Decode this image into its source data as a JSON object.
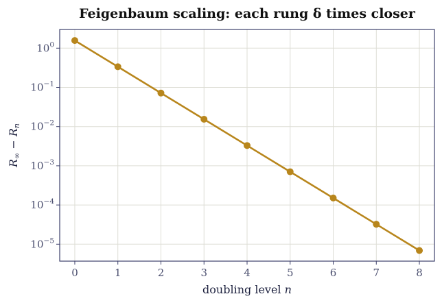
{
  "chart_data": {
    "type": "line",
    "title": "Feigenbaum scaling: each rung δ times closer",
    "xlabel": "doubling level n",
    "xlabel_text": "doubling level ",
    "xlabel_var": "n",
    "ylabel": "R∞ − Rn",
    "ylabel_parts": {
      "r": "R",
      "inf": "∞",
      "minus": " − ",
      "r2": "R",
      "n": "n"
    },
    "y_scale": "log",
    "x_ticks": [
      0,
      1,
      2,
      3,
      4,
      5,
      6,
      7,
      8
    ],
    "x_tick_labels": [
      "0",
      "1",
      "2",
      "3",
      "4",
      "5",
      "6",
      "7",
      "8"
    ],
    "y_ticks": [
      1,
      0.1,
      0.01,
      0.001,
      0.0001,
      1e-05
    ],
    "y_tick_base": "10",
    "y_tick_exponents": [
      "0",
      "−1",
      "−2",
      "−3",
      "−4",
      "−5"
    ],
    "xlim": [
      -0.35,
      8.35
    ],
    "ylim": [
      3.7e-06,
      3.0
    ],
    "grid": true,
    "series": [
      {
        "x": [
          0,
          1,
          2,
          3,
          4,
          5,
          6,
          7,
          8
        ],
        "y": [
          1.57,
          0.336,
          0.0718,
          0.0154,
          0.00329,
          0.000705,
          0.000151,
          3.23e-05,
          6.9e-06
        ],
        "color": "#b8861c"
      }
    ],
    "colors": {
      "line": "#b8861c",
      "axes": "#3c3f6b",
      "grid": "#ddddd5",
      "tick_text": "#4a4e6e"
    }
  }
}
